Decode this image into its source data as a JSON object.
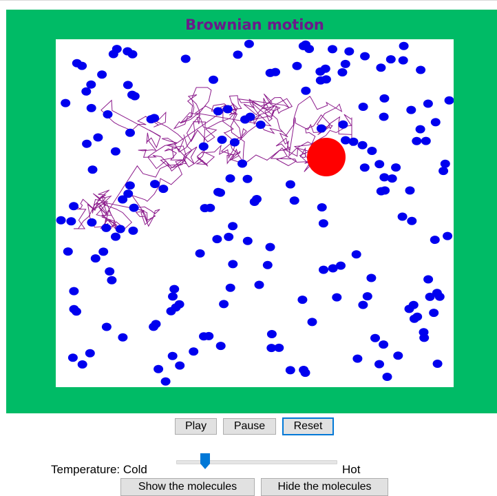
{
  "simulation": {
    "title": "Brownian motion",
    "molecule_color": "#0000ee",
    "particle_color": "#ff0000",
    "trail_color": "#8b1a8b",
    "background_color": "#00bb66"
  },
  "controls": {
    "play_label": "Play",
    "pause_label": "Pause",
    "reset_label": "Reset"
  },
  "temperature": {
    "label": "Temperature: Cold",
    "hot_label": "Hot",
    "value_fraction": 0.16
  },
  "molecules": {
    "show_label": "Show the molecules",
    "hide_label": "Hide the molecules"
  }
}
